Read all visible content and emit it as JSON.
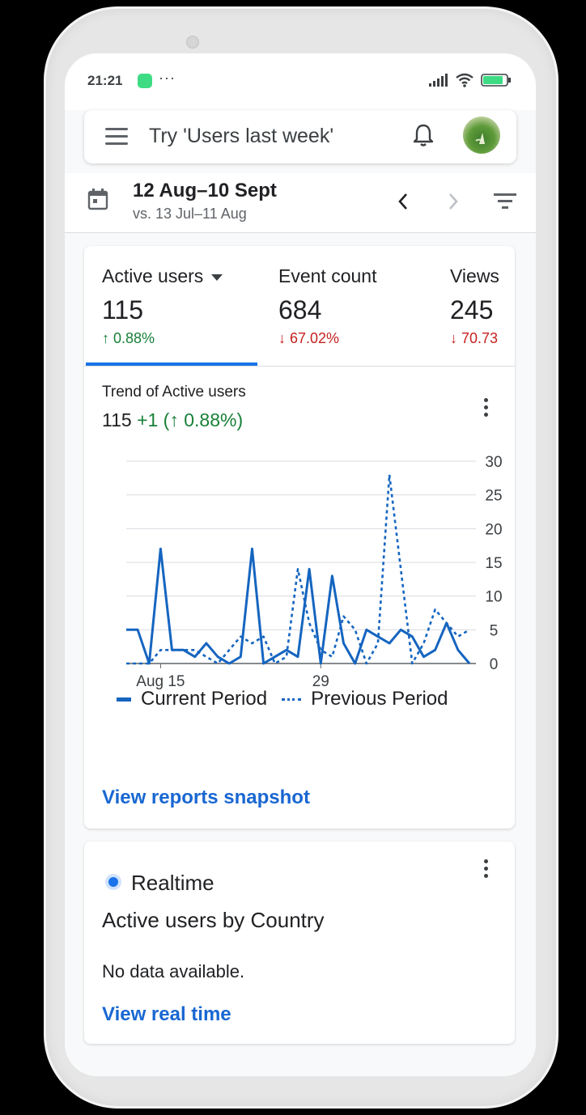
{
  "status_bar": {
    "time": "21:21",
    "more": "···"
  },
  "search": {
    "placeholder": "Try 'Users last week'"
  },
  "date_range": {
    "current": "12 Aug–10 Sept",
    "comparison": "vs. 13 Jul–11 Aug"
  },
  "metrics": [
    {
      "label": "Active users",
      "value": "115",
      "change": "↑ 0.88%",
      "direction": "up",
      "selected": true
    },
    {
      "label": "Event count",
      "value": "684",
      "change": "↓ 67.02%",
      "direction": "down",
      "selected": false
    },
    {
      "label": "Views",
      "value": "245",
      "change": "↓ 70.73",
      "direction": "down",
      "selected": false
    }
  ],
  "trend": {
    "title": "Trend of Active users",
    "value": "115",
    "delta": "+1 (↑ 0.88%)"
  },
  "chart_data": {
    "type": "line",
    "x_labels": [
      "Aug 15",
      "29"
    ],
    "y_ticks": [
      "30",
      "25",
      "20",
      "15",
      "10",
      "5",
      "0"
    ],
    "ylim": [
      0,
      30
    ],
    "y_axis_side": "right",
    "grid": true,
    "legend_position": "bottom",
    "series": [
      {
        "name": "Current Period",
        "style": "solid",
        "color": "#1565c0",
        "values": [
          5,
          5,
          0,
          17,
          2,
          2,
          1,
          3,
          1,
          0,
          1,
          17,
          0,
          1,
          2,
          1,
          14,
          0,
          13,
          3,
          0,
          5,
          4,
          3,
          5,
          4,
          1,
          2,
          6,
          2,
          0
        ]
      },
      {
        "name": "Previous Period",
        "style": "dotted",
        "color": "#1565c0",
        "values": [
          0,
          0,
          0,
          2,
          2,
          2,
          2,
          1,
          0,
          2,
          4,
          3,
          4,
          0,
          1,
          14,
          6,
          2,
          1,
          7,
          5,
          0,
          3,
          28,
          14,
          0,
          3,
          8,
          6,
          4,
          5
        ]
      }
    ]
  },
  "links": {
    "snapshot": "View reports snapshot",
    "realtime": "View real time"
  },
  "realtime": {
    "title": "Realtime",
    "subtitle": "Active users by Country",
    "empty": "No data available."
  },
  "colors": {
    "accent": "#1a73e8",
    "link": "#1967d2",
    "positive": "#188038",
    "negative": "#c5221f",
    "chart_line": "#1565c0"
  }
}
